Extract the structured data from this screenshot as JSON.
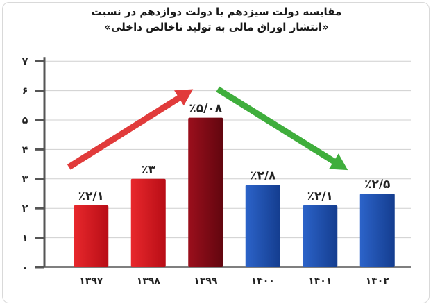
{
  "title_lines": [
    "مقایسه دولت سیزدهم با دولت دوازدهم در نسبت",
    "«انتشار اوراق مالی به تولید ناخالص داخلی»"
  ],
  "chart_data": {
    "type": "bar",
    "title": "مقایسه دولت سیزدهم با دولت دوازدهم در نسبت «انتشار اوراق مالی به تولید ناخالص داخلی»",
    "categories": [
      "۱۳۹۷",
      "۱۳۹۸",
      "۱۳۹۹",
      "۱۴۰۰",
      "۱۴۰۱",
      "۱۴۰۲"
    ],
    "values": [
      2.1,
      3,
      5.08,
      2.8,
      2.1,
      2.5
    ],
    "value_labels": [
      "٪۲/۱",
      "٪۳",
      "٪۵/۰۸",
      "٪۲/۸",
      "٪۲/۱",
      "٪۲/۵"
    ],
    "y_ticks": [
      0,
      1,
      2,
      3,
      4,
      5,
      6,
      7
    ],
    "y_tick_labels": [
      "۰",
      "۱",
      "۲",
      "۳",
      "۴",
      "۵",
      "۶",
      "۷"
    ],
    "ylim": [
      0,
      7
    ],
    "grid": true,
    "xlabel": "",
    "ylabel": "",
    "colors": {
      "red_bar": "#d3141d",
      "dark_red_bar": "#7d0a14",
      "blue_bar": "#1a4fb0",
      "up_arrow": "#e13b3b",
      "down_arrow": "#3fae3c",
      "grid": "#cfcfcf",
      "axis": "#555555"
    },
    "bar_fills": [
      "red_bar",
      "red_bar",
      "dark_red_bar",
      "blue_bar",
      "blue_bar",
      "blue_bar"
    ],
    "annotations": [
      {
        "type": "arrow",
        "direction": "up-right",
        "color": "up_arrow"
      },
      {
        "type": "arrow",
        "direction": "down-right",
        "color": "down_arrow"
      }
    ]
  }
}
